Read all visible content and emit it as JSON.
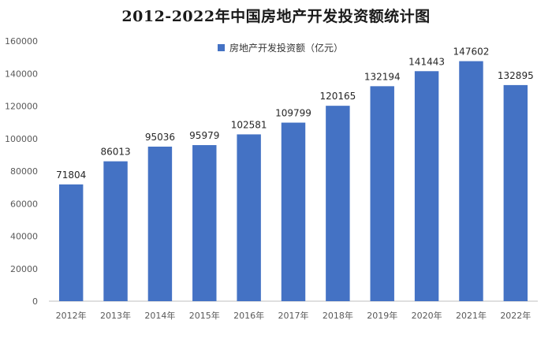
{
  "chart_data": {
    "type": "bar",
    "title": "2012-2022年中国房地产开发投资额统计图",
    "categories": [
      "2012年",
      "2013年",
      "2014年",
      "2015年",
      "2016年",
      "2017年",
      "2018年",
      "2019年",
      "2020年",
      "2021年",
      "2022年"
    ],
    "series": [
      {
        "name": "房地产开发投资额（亿元）",
        "values": [
          71804,
          86013,
          95036,
          95979,
          102581,
          109799,
          120165,
          132194,
          141443,
          147602,
          132895
        ],
        "color": "#4472c4"
      }
    ],
    "ylim": [
      0,
      160000
    ],
    "yticks": [
      0,
      20000,
      40000,
      60000,
      80000,
      100000,
      120000,
      140000,
      160000
    ],
    "xlabel": "",
    "ylabel": "",
    "grid": false,
    "legend_position": "top-center",
    "data_labels": true
  }
}
